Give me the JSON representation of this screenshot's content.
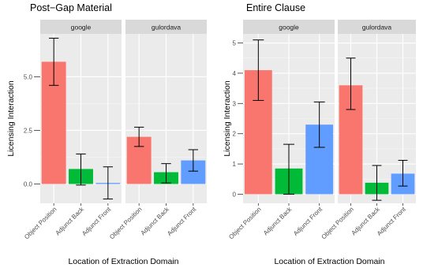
{
  "chart_data": [
    {
      "type": "bar",
      "title": "Post−Gap Material",
      "xlabel": "Location of Extraction Domain",
      "ylabel": "Licensing Interaction",
      "categories": [
        "Object Position",
        "Adjunct Back",
        "Adjunct Front"
      ],
      "ylim": [
        -0.9,
        7.0
      ],
      "yticks": [
        0.0,
        2.5,
        5.0
      ],
      "ytick_labels": [
        "0.0",
        "2.5",
        "5.0"
      ],
      "grid": true,
      "colors": [
        "#F8766D",
        "#00BA38",
        "#619CFF"
      ],
      "panels": [
        {
          "name": "google",
          "values": [
            5.7,
            0.7,
            0.05
          ],
          "error_low": [
            4.6,
            -0.05,
            -0.7
          ],
          "error_high": [
            6.8,
            1.4,
            0.8
          ]
        },
        {
          "name": "gulordava",
          "values": [
            2.2,
            0.55,
            1.1
          ],
          "error_low": [
            1.75,
            0.05,
            0.6
          ],
          "error_high": [
            2.65,
            0.95,
            1.6
          ]
        }
      ]
    },
    {
      "type": "bar",
      "title": "Entire Clause",
      "xlabel": "Location of Extraction Domain",
      "ylabel": "Licensing Interaction",
      "categories": [
        "Object Position",
        "Adjunct Back",
        "Adjunct Front"
      ],
      "ylim": [
        -0.3,
        5.3
      ],
      "yticks": [
        0,
        1,
        2,
        3,
        4,
        5
      ],
      "ytick_labels": [
        "0",
        "1",
        "2",
        "3",
        "4",
        "5"
      ],
      "grid": true,
      "colors": [
        "#F8766D",
        "#00BA38",
        "#619CFF"
      ],
      "panels": [
        {
          "name": "google",
          "values": [
            4.1,
            0.85,
            2.3
          ],
          "error_low": [
            3.1,
            0.0,
            1.55
          ],
          "error_high": [
            5.1,
            1.65,
            3.05
          ]
        },
        {
          "name": "gulordava",
          "values": [
            3.6,
            0.38,
            0.68
          ],
          "error_low": [
            2.8,
            -0.2,
            0.27
          ],
          "error_high": [
            4.5,
            0.95,
            1.12
          ]
        }
      ]
    }
  ]
}
